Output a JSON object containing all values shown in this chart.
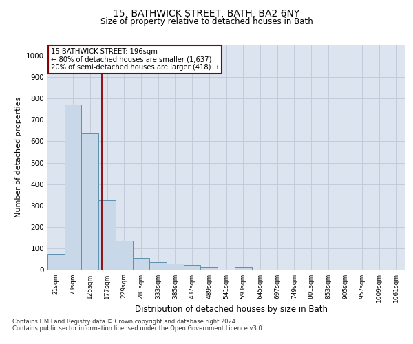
{
  "title_main": "15, BATHWICK STREET, BATH, BA2 6NY",
  "title_sub": "Size of property relative to detached houses in Bath",
  "xlabel": "Distribution of detached houses by size in Bath",
  "ylabel": "Number of detached properties",
  "categories": [
    "21sqm",
    "73sqm",
    "125sqm",
    "177sqm",
    "229sqm",
    "281sqm",
    "333sqm",
    "385sqm",
    "437sqm",
    "489sqm",
    "541sqm",
    "593sqm",
    "645sqm",
    "697sqm",
    "749sqm",
    "801sqm",
    "853sqm",
    "905sqm",
    "957sqm",
    "1009sqm",
    "1061sqm"
  ],
  "values": [
    75,
    770,
    635,
    325,
    135,
    55,
    38,
    30,
    25,
    13,
    0,
    13,
    0,
    0,
    0,
    0,
    0,
    0,
    0,
    0,
    0
  ],
  "bar_color": "#c8d8e8",
  "bar_edge_color": "#6090b0",
  "grid_color": "#c0c8d8",
  "background_color": "#dce4f0",
  "vline_color": "#8b0000",
  "vline_x": 2.68,
  "annotation_text_line1": "15 BATHWICK STREET: 196sqm",
  "annotation_text_line2": "← 80% of detached houses are smaller (1,637)",
  "annotation_text_line3": "20% of semi-detached houses are larger (418) →",
  "annotation_box_color": "#8b0000",
  "annotation_box_fill": "#ffffff",
  "footer_line1": "Contains HM Land Registry data © Crown copyright and database right 2024.",
  "footer_line2": "Contains public sector information licensed under the Open Government Licence v3.0.",
  "ylim": [
    0,
    1050
  ],
  "yticks": [
    0,
    100,
    200,
    300,
    400,
    500,
    600,
    700,
    800,
    900,
    1000
  ]
}
